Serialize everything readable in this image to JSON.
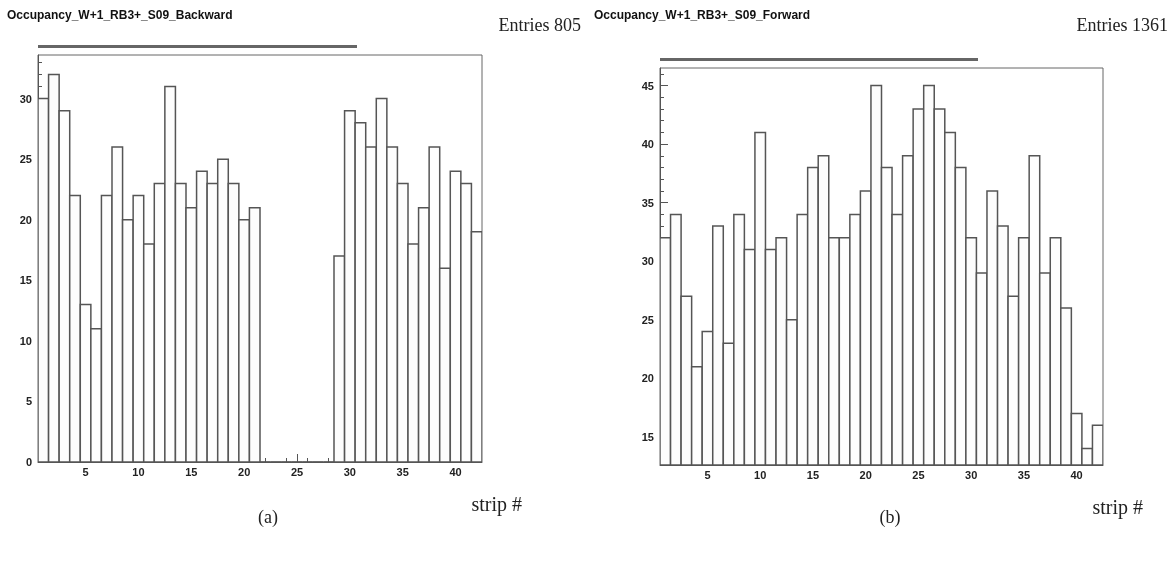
{
  "chart_data": [
    {
      "type": "histogram",
      "title": "Occupancy_W+1_RB3+_S09_Backward",
      "xlabel": "strip #",
      "annotations": [
        "Entries 805",
        "(a)"
      ],
      "color": "#555555",
      "bins": [
        0.5,
        1.5,
        2.5,
        3.5,
        4.5,
        5.5,
        6.5,
        7.5,
        8.5,
        9.5,
        10.5,
        11.5,
        12.5,
        13.5,
        14.5,
        15.5,
        16.5,
        17.5,
        18.5,
        19.5,
        20.5,
        21.5,
        22.5,
        23.5,
        24.5,
        25.5,
        26.5,
        27.5,
        28.5,
        29.5,
        30.5,
        31.5,
        32.5,
        33.5,
        34.5,
        35.5,
        36.5,
        37.5,
        38.5,
        39.5,
        40.5,
        41.5,
        42.5
      ],
      "values": [
        30,
        32,
        29,
        22,
        13,
        11,
        22,
        26,
        20,
        22,
        18,
        23,
        31,
        23,
        21,
        24,
        23,
        25,
        23,
        20,
        21,
        0,
        0,
        0,
        0,
        0,
        0,
        0,
        17,
        29,
        28,
        26,
        30,
        26,
        23,
        18,
        21,
        26,
        16,
        24,
        23,
        19
      ],
      "xlim": [
        0.5,
        42.5
      ],
      "xticks": [
        5,
        10,
        15,
        20,
        25,
        30,
        35,
        40
      ],
      "ylim": [
        0,
        33.6
      ],
      "yticks": [
        0,
        5,
        10,
        15,
        20,
        25,
        30
      ],
      "grid": false
    },
    {
      "type": "histogram",
      "title": "Occupancy_W+1_RB3+_S09_Forward",
      "xlabel": "strip #",
      "annotations": [
        "Entries 1361",
        "(b)"
      ],
      "color": "#555555",
      "bins": [
        0.5,
        1.5,
        2.5,
        3.5,
        4.5,
        5.5,
        6.5,
        7.5,
        8.5,
        9.5,
        10.5,
        11.5,
        12.5,
        13.5,
        14.5,
        15.5,
        16.5,
        17.5,
        18.5,
        19.5,
        20.5,
        21.5,
        22.5,
        23.5,
        24.5,
        25.5,
        26.5,
        27.5,
        28.5,
        29.5,
        30.5,
        31.5,
        32.5,
        33.5,
        34.5,
        35.5,
        36.5,
        37.5,
        38.5,
        39.5,
        40.5,
        41.5,
        42.5
      ],
      "values": [
        32,
        34,
        27,
        21,
        24,
        33,
        23,
        34,
        31,
        41,
        31,
        32,
        25,
        34,
        38,
        39,
        32,
        32,
        34,
        36,
        45,
        38,
        34,
        39,
        43,
        45,
        43,
        41,
        38,
        32,
        29,
        36,
        33,
        27,
        32,
        39,
        29,
        32,
        26,
        17,
        14,
        16
      ],
      "xlim": [
        0.5,
        42.5
      ],
      "xticks": [
        5,
        10,
        15,
        20,
        25,
        30,
        35,
        40
      ],
      "ylim": [
        12.6,
        46.5
      ],
      "yticks": [
        15,
        20,
        25,
        30,
        35,
        40,
        45
      ],
      "grid": false
    }
  ]
}
